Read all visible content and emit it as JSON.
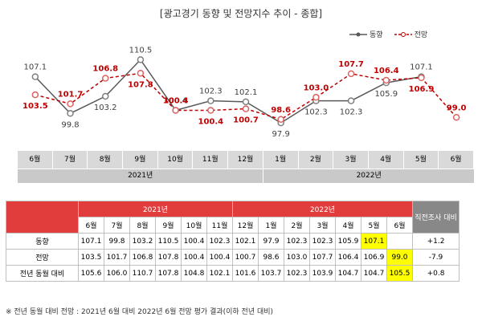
{
  "title": "[광고경기 동향 및 전망지수 추이 - 종합]",
  "chart_data": {
    "type": "line",
    "title": "[광고경기 동향 및 전망지수 추이 - 종합]",
    "categories": [
      "6월",
      "7월",
      "8월",
      "9월",
      "10월",
      "11월",
      "12월",
      "1월",
      "2월",
      "3월",
      "4월",
      "5월",
      "6월"
    ],
    "year_groups": [
      {
        "label": "2021년",
        "span": 7
      },
      {
        "label": "2022년",
        "span": 6
      }
    ],
    "series": [
      {
        "name": "동향",
        "values": [
          107.1,
          99.8,
          103.2,
          110.5,
          100.4,
          102.3,
          102.1,
          97.9,
          102.3,
          102.3,
          105.9,
          107.1,
          null
        ],
        "labels": [
          "107.1",
          "99.8",
          "103.2",
          "110.5",
          "100.4",
          "102.3",
          "102.1",
          "97.9",
          "102.3",
          "102.3",
          "105.9",
          "107.1",
          ""
        ],
        "color": "#595959"
      },
      {
        "name": "전망",
        "values": [
          103.5,
          101.7,
          106.8,
          107.8,
          100.4,
          100.4,
          100.7,
          98.6,
          103.0,
          107.7,
          106.4,
          106.9,
          99.0
        ],
        "labels": [
          "103.5",
          "101.7",
          "106.8",
          "107.8",
          "100.4",
          "100.4",
          "100.7",
          "98.6",
          "103.0",
          "107.7",
          "106.4",
          "106.9",
          "99.0"
        ],
        "color": "#c00000"
      }
    ],
    "grid": false,
    "legend": "top-right"
  },
  "table": {
    "year_2021": "2021년",
    "year_2022": "2022년",
    "comparison_header": "직전조사 대비",
    "months": [
      "6월",
      "7월",
      "8월",
      "9월",
      "10월",
      "11월",
      "12월",
      "1월",
      "2월",
      "3월",
      "4월",
      "5월",
      "6월"
    ],
    "rows": [
      {
        "label": "동향",
        "values": [
          "107.1",
          "99.8",
          "103.2",
          "110.5",
          "100.4",
          "102.3",
          "102.1",
          "97.9",
          "102.3",
          "102.3",
          "105.9",
          "107.1",
          ""
        ],
        "diff": "+1.2",
        "highlight": 11
      },
      {
        "label": "전망",
        "values": [
          "103.5",
          "101.7",
          "106.8",
          "107.8",
          "100.4",
          "100.4",
          "100.7",
          "98.6",
          "103.0",
          "107.7",
          "106.4",
          "106.9",
          "99.0"
        ],
        "diff": "-7.9",
        "highlight": 12
      },
      {
        "label": "전년 동월 대비",
        "values": [
          "105.6",
          "106.0",
          "110.7",
          "107.8",
          "104.8",
          "102.1",
          "101.6",
          "103.7",
          "102.3",
          "103.9",
          "104.7",
          "104.7",
          "105.5"
        ],
        "diff": "+0.8",
        "highlight": 12
      }
    ]
  },
  "footnote": "※ 전년 동월 대비 전망 : 2021년 6월 대비 2022년 6월 전망 평가 결과(이하 전년 대비)"
}
